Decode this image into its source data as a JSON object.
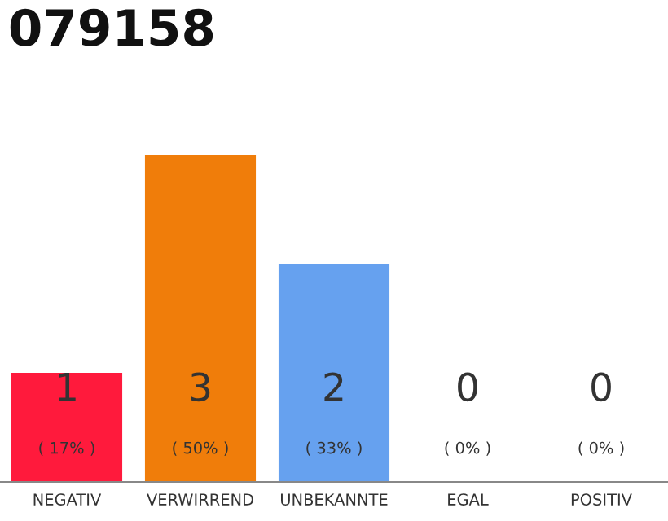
{
  "chart_data": {
    "type": "bar",
    "title": "079158",
    "categories": [
      "NEGATIV",
      "VERWIRREND",
      "UNBEKANNTE",
      "EGAL",
      "POSITIV"
    ],
    "values": [
      1,
      3,
      2,
      0,
      0
    ],
    "colors": [
      "#ff1a3c",
      "#f07d0a",
      "#66a1ef",
      "#999999",
      "#999999"
    ],
    "value_labels": [
      "1\n( 17% )",
      "3\n( 50% )",
      "2\n( 33% )",
      "0\n( 0% )",
      "0\n( 0% )"
    ],
    "grid": false,
    "legend": false
  }
}
